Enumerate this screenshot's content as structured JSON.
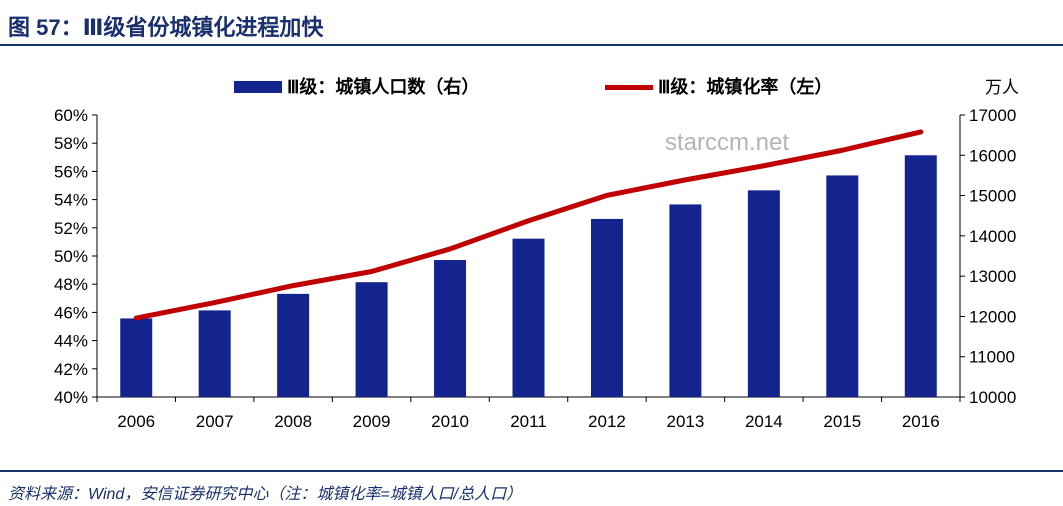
{
  "figure": {
    "title": "图 57：Ⅲ级省份城镇化进程加快",
    "source": "资料来源：Wind，安信证券研究中心（注：城镇化率=城镇人口/总人口）",
    "watermark": "starccm.net"
  },
  "colors": {
    "bar": "#13248f",
    "line": "#c00000",
    "rule": "#1a2f6e",
    "text": "#000000"
  },
  "chart_data": {
    "type": "bar+line",
    "categories": [
      "2006",
      "2007",
      "2008",
      "2009",
      "2010",
      "2011",
      "2012",
      "2013",
      "2014",
      "2015",
      "2016"
    ],
    "series": [
      {
        "name": "Ⅲ级：城镇人口数（右）",
        "type": "bar",
        "axis": "right",
        "values": [
          11950,
          12150,
          12560,
          12850,
          13400,
          13930,
          14420,
          14780,
          15130,
          15500,
          16000
        ]
      },
      {
        "name": "Ⅲ级：城镇化率（左）",
        "type": "line",
        "axis": "left",
        "values": [
          45.6,
          46.7,
          47.9,
          48.9,
          50.5,
          52.5,
          54.3,
          55.4,
          56.4,
          57.5,
          58.8
        ]
      }
    ],
    "left_axis": {
      "min": 40,
      "max": 60,
      "step": 2,
      "tick_labels": [
        "40%",
        "42%",
        "44%",
        "46%",
        "48%",
        "50%",
        "52%",
        "54%",
        "56%",
        "58%",
        "60%"
      ]
    },
    "right_axis": {
      "min": 10000,
      "max": 17000,
      "step": 1000,
      "unit": "万人",
      "tick_labels": [
        "10000",
        "11000",
        "12000",
        "13000",
        "14000",
        "15000",
        "16000",
        "17000"
      ]
    },
    "legend_position": "top",
    "grid": false
  }
}
